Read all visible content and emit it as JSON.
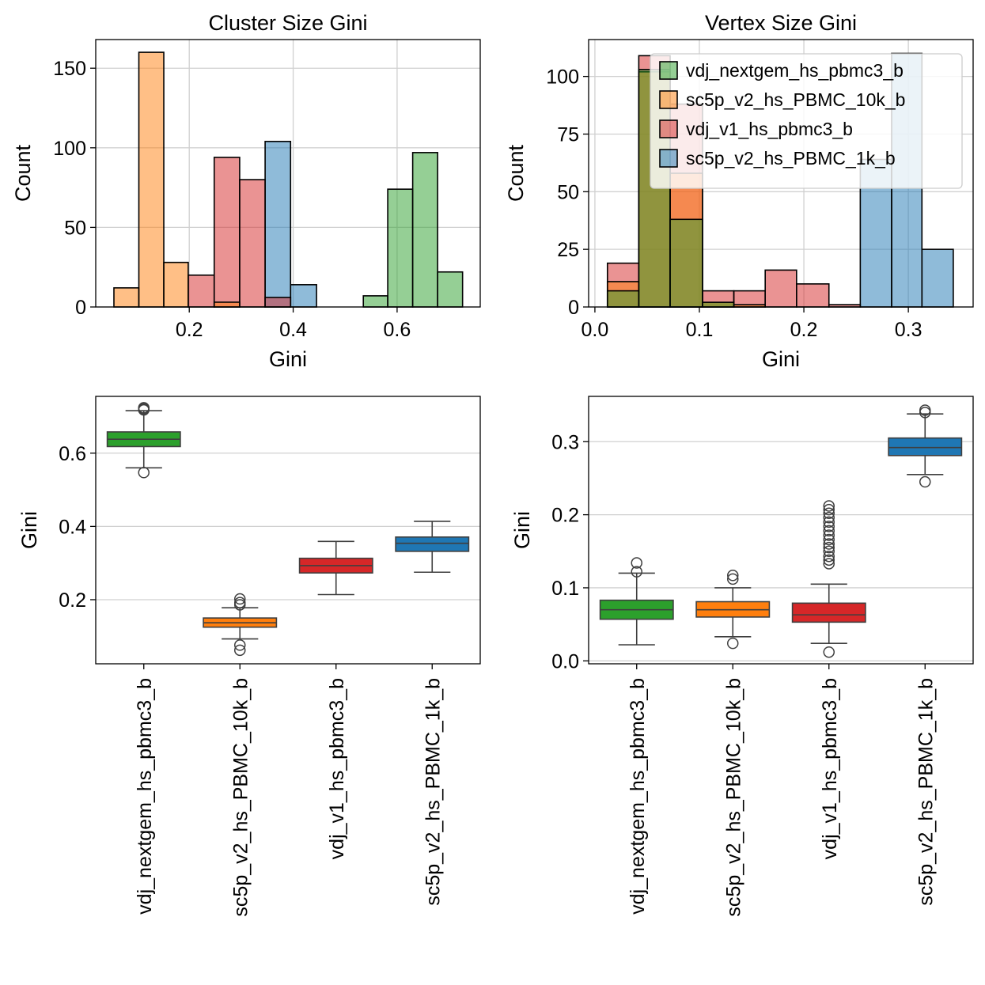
{
  "colors": {
    "green": "#2ca02c",
    "orange": "#ff7f0e",
    "red": "#d62728",
    "blue": "#1f77b4",
    "green_fill": "#96d293",
    "orange_fill": "#ffbe86",
    "red_fill": "#e9969a",
    "blue_fill": "#8fbbd9",
    "grid": "#d0d0d0",
    "edge": "#000000",
    "outline": "#3f3f3f"
  },
  "chart_data": [
    {
      "id": "hist-cluster",
      "type": "histogram",
      "title": "Cluster Size Gini",
      "xlabel": "Gini",
      "ylabel": "Count",
      "xlim": [
        0.02,
        0.76
      ],
      "ylim": [
        0,
        168
      ],
      "xticks": [
        0.2,
        0.4,
        0.6
      ],
      "xtick_labels": [
        "0.2",
        "0.4",
        "0.6"
      ],
      "yticks": [
        0,
        50,
        100,
        150
      ],
      "ytick_labels": [
        "0",
        "50",
        "100",
        "150"
      ],
      "grid": true,
      "series": [
        {
          "name": "sc5p_v2_hs_PBMC_1k_b",
          "color_key": "blue",
          "bins": [
            [
              0.346,
              0.395,
              104
            ],
            [
              0.395,
              0.445,
              14
            ]
          ]
        },
        {
          "name": "vdj_v1_hs_pbmc3_b",
          "color_key": "red",
          "bins": [
            [
              0.198,
              0.248,
              20
            ],
            [
              0.248,
              0.297,
              94
            ],
            [
              0.297,
              0.346,
              80
            ],
            [
              0.346,
              0.395,
              6
            ]
          ]
        },
        {
          "name": "sc5p_v2_hs_PBMC_10k_b",
          "color_key": "orange",
          "bins": [
            [
              0.055,
              0.103,
              12
            ],
            [
              0.103,
              0.151,
              160
            ],
            [
              0.151,
              0.198,
              28
            ],
            [
              0.248,
              0.297,
              3
            ]
          ]
        },
        {
          "name": "vdj_nextgem_hs_pbmc3_b",
          "color_key": "green",
          "bins": [
            [
              0.535,
              0.582,
              7
            ],
            [
              0.582,
              0.63,
              74
            ],
            [
              0.63,
              0.678,
              97
            ],
            [
              0.678,
              0.726,
              22
            ]
          ]
        }
      ]
    },
    {
      "id": "hist-vertex",
      "type": "histogram",
      "title": "Vertex Size Gini",
      "xlabel": "Gini",
      "ylabel": "Count",
      "xlim": [
        -0.006,
        0.362
      ],
      "ylim": [
        0,
        116
      ],
      "xticks": [
        0.0,
        0.1,
        0.2,
        0.3
      ],
      "xtick_labels": [
        "0.0",
        "0.1",
        "0.2",
        "0.3"
      ],
      "yticks": [
        0,
        25,
        50,
        75,
        100
      ],
      "ytick_labels": [
        "0",
        "25",
        "50",
        "75",
        "100"
      ],
      "grid": true,
      "legend": {
        "placement": "upper right",
        "entries": [
          {
            "name": "vdj_nextgem_hs_pbmc3_b",
            "color_key": "green"
          },
          {
            "name": "sc5p_v2_hs_PBMC_10k_b",
            "color_key": "orange"
          },
          {
            "name": "vdj_v1_hs_pbmc3_b",
            "color_key": "red"
          },
          {
            "name": "sc5p_v2_hs_PBMC_1k_b",
            "color_key": "blue"
          }
        ]
      },
      "series": [
        {
          "name": "sc5p_v2_hs_PBMC_1k_b",
          "color_key": "blue",
          "bins": [
            [
              0.254,
              0.284,
              64
            ],
            [
              0.284,
              0.313,
              110
            ],
            [
              0.313,
              0.343,
              25
            ]
          ]
        },
        {
          "name": "vdj_v1_hs_pbmc3_b",
          "color_key": "red",
          "bins": [
            [
              0.012,
              0.042,
              19
            ],
            [
              0.042,
              0.072,
              109
            ],
            [
              0.072,
              0.103,
              88
            ],
            [
              0.103,
              0.133,
              7
            ],
            [
              0.133,
              0.163,
              7
            ],
            [
              0.163,
              0.193,
              16
            ],
            [
              0.193,
              0.224,
              10
            ],
            [
              0.224,
              0.254,
              1
            ]
          ]
        },
        {
          "name": "sc5p_v2_hs_PBMC_10k_b",
          "color_key": "orange",
          "bins": [
            [
              0.012,
              0.042,
              11
            ],
            [
              0.042,
              0.072,
              102
            ],
            [
              0.072,
              0.103,
              58
            ],
            [
              0.103,
              0.133,
              2
            ],
            [
              0.133,
              0.163,
              1
            ]
          ]
        },
        {
          "name": "vdj_nextgem_hs_pbmc3_b",
          "color_key": "green",
          "bins": [
            [
              0.012,
              0.042,
              7
            ],
            [
              0.042,
              0.072,
              103
            ],
            [
              0.072,
              0.103,
              38
            ],
            [
              0.103,
              0.133,
              2
            ]
          ]
        }
      ]
    },
    {
      "id": "box-cluster",
      "type": "box",
      "ylabel": "Gini",
      "ylim": [
        0.025,
        0.755
      ],
      "yticks": [
        0.2,
        0.4,
        0.6
      ],
      "ytick_labels": [
        "0.2",
        "0.4",
        "0.6"
      ],
      "grid": true,
      "categories": [
        "vdj_nextgem_hs_pbmc3_b",
        "sc5p_v2_hs_PBMC_10k_b",
        "vdj_v1_hs_pbmc3_b",
        "sc5p_v2_hs_PBMC_1k_b"
      ],
      "boxes": [
        {
          "color_key": "green",
          "q1": 0.618,
          "median": 0.638,
          "q3": 0.658,
          "whislo": 0.56,
          "whishi": 0.716,
          "fliers": [
            0.547,
            0.718,
            0.721,
            0.724
          ]
        },
        {
          "color_key": "orange",
          "q1": 0.125,
          "median": 0.137,
          "q3": 0.15,
          "whislo": 0.093,
          "whishi": 0.178,
          "fliers": [
            0.062,
            0.076,
            0.186,
            0.192,
            0.202
          ]
        },
        {
          "color_key": "red",
          "q1": 0.273,
          "median": 0.293,
          "q3": 0.313,
          "whislo": 0.214,
          "whishi": 0.359,
          "fliers": []
        },
        {
          "color_key": "blue",
          "q1": 0.332,
          "median": 0.354,
          "q3": 0.371,
          "whislo": 0.275,
          "whishi": 0.414,
          "fliers": []
        }
      ]
    },
    {
      "id": "box-vertex",
      "type": "box",
      "ylabel": "Gini",
      "ylim": [
        -0.004,
        0.362
      ],
      "yticks": [
        0.0,
        0.1,
        0.2,
        0.3
      ],
      "ytick_labels": [
        "0.0",
        "0.1",
        "0.2",
        "0.3"
      ],
      "grid": true,
      "categories": [
        "vdj_nextgem_hs_pbmc3_b",
        "sc5p_v2_hs_PBMC_10k_b",
        "vdj_v1_hs_pbmc3_b",
        "sc5p_v2_hs_PBMC_1k_b"
      ],
      "boxes": [
        {
          "color_key": "green",
          "q1": 0.057,
          "median": 0.07,
          "q3": 0.083,
          "whislo": 0.022,
          "whishi": 0.12,
          "fliers": [
            0.122,
            0.134
          ]
        },
        {
          "color_key": "orange",
          "q1": 0.06,
          "median": 0.07,
          "q3": 0.081,
          "whislo": 0.033,
          "whishi": 0.1,
          "fliers": [
            0.024,
            0.112,
            0.117
          ]
        },
        {
          "color_key": "red",
          "q1": 0.053,
          "median": 0.063,
          "q3": 0.079,
          "whislo": 0.024,
          "whishi": 0.105,
          "fliers": [
            0.012,
            0.133,
            0.138,
            0.143,
            0.15,
            0.155,
            0.16,
            0.166,
            0.172,
            0.178,
            0.184,
            0.19,
            0.196,
            0.202,
            0.207,
            0.212
          ]
        },
        {
          "color_key": "blue",
          "q1": 0.281,
          "median": 0.292,
          "q3": 0.305,
          "whislo": 0.255,
          "whishi": 0.338,
          "fliers": [
            0.245,
            0.34,
            0.343
          ]
        }
      ]
    }
  ]
}
